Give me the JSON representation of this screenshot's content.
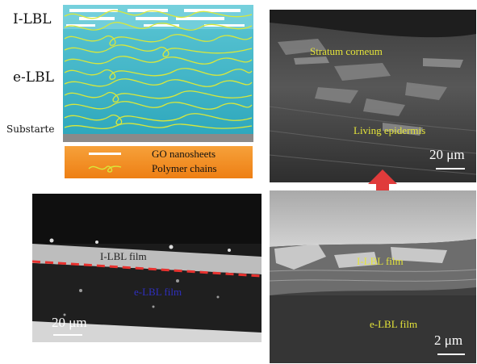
{
  "schematic": {
    "label_top": "I-LBL",
    "label_mid": "e-LBL",
    "label_substrate": "Substarte",
    "legend_go": "GO nanosheets",
    "legend_polymer": "Polymer chains"
  },
  "sem_top_right": {
    "label_stratum": "Stratum corneum",
    "label_living": "Living epidermis",
    "scale_label": "20 μm"
  },
  "sem_bottom_left": {
    "label_ilbl": "I-LBL film",
    "label_elbl": "e-LBL film",
    "scale_label": "20 μm"
  },
  "sem_bottom_right": {
    "label_ilbl": "I-LBL film",
    "label_elbl": "e-LBL film",
    "scale_label": "2 μm"
  },
  "colors": {
    "film_fill": "#3fb6c6",
    "chain": "#d9e83a",
    "legend_box": "#f28c1e",
    "arrow": "#e03b3b",
    "dash_line": "#e8322f"
  }
}
